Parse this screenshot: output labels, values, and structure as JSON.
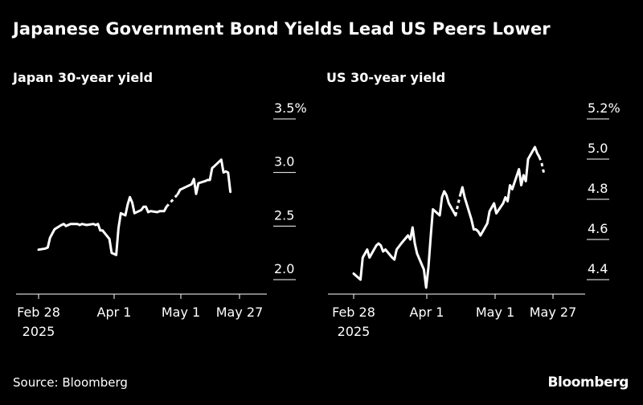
{
  "title": "Japanese Government Bond Yields Lead US Peers Lower",
  "source": "Source: Bloomberg",
  "brand": "Bloomberg",
  "chart_data": [
    {
      "type": "line",
      "title": "Japan 30-year yield",
      "x_ticks": [
        "Feb 28",
        "Apr 1",
        "May 1",
        "May 27"
      ],
      "x_subtick": "2025",
      "y_ticks": [
        "2.0",
        "2.5",
        "3.0",
        "3.5%"
      ],
      "ylim": [
        2.0,
        3.5
      ],
      "grid": false,
      "line_color": "#ffffff",
      "series": [
        {
          "style": "solid",
          "points": [
            [
              "2025-02-28",
              2.28
            ],
            [
              "2025-03-03",
              2.29
            ],
            [
              "2025-03-04",
              2.3
            ],
            [
              "2025-03-05",
              2.39
            ],
            [
              "2025-03-06",
              2.43
            ],
            [
              "2025-03-07",
              2.47
            ],
            [
              "2025-03-10",
              2.51
            ],
            [
              "2025-03-11",
              2.52
            ],
            [
              "2025-03-12",
              2.5
            ],
            [
              "2025-03-13",
              2.51
            ],
            [
              "2025-03-14",
              2.52
            ],
            [
              "2025-03-17",
              2.52
            ],
            [
              "2025-03-18",
              2.51
            ],
            [
              "2025-03-19",
              2.52
            ],
            [
              "2025-03-21",
              2.51
            ],
            [
              "2025-03-24",
              2.52
            ],
            [
              "2025-03-25",
              2.51
            ],
            [
              "2025-03-26",
              2.52
            ],
            [
              "2025-03-27",
              2.46
            ],
            [
              "2025-03-28",
              2.46
            ],
            [
              "2025-03-31",
              2.38
            ],
            [
              "2025-04-01",
              2.25
            ],
            [
              "2025-04-02",
              2.24
            ],
            [
              "2025-04-03",
              2.23
            ],
            [
              "2025-04-04",
              2.48
            ],
            [
              "2025-04-05",
              2.62
            ],
            [
              "2025-04-07",
              2.6
            ],
            [
              "2025-04-08",
              2.7
            ],
            [
              "2025-04-09",
              2.77
            ],
            [
              "2025-04-10",
              2.72
            ],
            [
              "2025-04-11",
              2.62
            ],
            [
              "2025-04-14",
              2.65
            ],
            [
              "2025-04-15",
              2.68
            ],
            [
              "2025-04-16",
              2.68
            ],
            [
              "2025-04-17",
              2.63
            ],
            [
              "2025-04-18",
              2.64
            ],
            [
              "2025-04-21",
              2.63
            ],
            [
              "2025-04-22",
              2.64
            ],
            [
              "2025-04-24",
              2.64
            ],
            [
              "2025-04-25",
              2.68
            ]
          ]
        },
        {
          "style": "dashed",
          "points": [
            [
              "2025-04-25",
              2.68
            ],
            [
              "2025-04-28",
              2.75
            ],
            [
              "2025-04-30",
              2.8
            ]
          ]
        },
        {
          "style": "solid",
          "points": [
            [
              "2025-04-30",
              2.8
            ],
            [
              "2025-05-01",
              2.84
            ],
            [
              "2025-05-02",
              2.85
            ],
            [
              "2025-05-06",
              2.89
            ],
            [
              "2025-05-07",
              2.94
            ],
            [
              "2025-05-08",
              2.8
            ],
            [
              "2025-05-09",
              2.9
            ],
            [
              "2025-05-12",
              2.92
            ],
            [
              "2025-05-13",
              2.93
            ],
            [
              "2025-05-14",
              2.93
            ],
            [
              "2025-05-15",
              3.04
            ],
            [
              "2025-05-16",
              3.06
            ],
            [
              "2025-05-19",
              3.12
            ],
            [
              "2025-05-20",
              3.0
            ],
            [
              "2025-05-21",
              3.01
            ],
            [
              "2025-05-22",
              3.0
            ],
            [
              "2025-05-23",
              2.82
            ]
          ]
        }
      ]
    },
    {
      "type": "line",
      "title": "US 30-year yield",
      "x_ticks": [
        "Feb 28",
        "Apr 1",
        "May 1",
        "May 27"
      ],
      "x_subtick": "2025",
      "y_ticks": [
        "4.4",
        "4.6",
        "4.8",
        "5.0",
        "5.2%"
      ],
      "ylim": [
        4.4,
        5.2
      ],
      "grid": false,
      "line_color": "#ffffff",
      "series": [
        {
          "style": "solid",
          "points": [
            [
              "2025-02-28",
              4.43
            ],
            [
              "2025-03-03",
              4.4
            ],
            [
              "2025-03-04",
              4.51
            ],
            [
              "2025-03-05",
              4.53
            ],
            [
              "2025-03-06",
              4.55
            ],
            [
              "2025-03-07",
              4.51
            ],
            [
              "2025-03-10",
              4.57
            ],
            [
              "2025-03-11",
              4.58
            ],
            [
              "2025-03-12",
              4.57
            ],
            [
              "2025-03-13",
              4.54
            ],
            [
              "2025-03-14",
              4.55
            ],
            [
              "2025-03-17",
              4.51
            ],
            [
              "2025-03-18",
              4.5
            ],
            [
              "2025-03-19",
              4.55
            ],
            [
              "2025-03-21",
              4.58
            ],
            [
              "2025-03-24",
              4.62
            ],
            [
              "2025-03-25",
              4.6
            ],
            [
              "2025-03-26",
              4.66
            ],
            [
              "2025-03-27",
              4.58
            ],
            [
              "2025-03-28",
              4.53
            ],
            [
              "2025-03-31",
              4.45
            ],
            [
              "2025-04-01",
              4.36
            ],
            [
              "2025-04-02",
              4.46
            ],
            [
              "2025-04-03",
              4.61
            ],
            [
              "2025-04-04",
              4.75
            ],
            [
              "2025-04-07",
              4.72
            ],
            [
              "2025-04-08",
              4.81
            ],
            [
              "2025-04-09",
              4.84
            ],
            [
              "2025-04-10",
              4.82
            ],
            [
              "2025-04-11",
              4.78
            ],
            [
              "2025-04-14",
              4.72
            ]
          ]
        },
        {
          "style": "dashed",
          "points": [
            [
              "2025-04-14",
              4.72
            ],
            [
              "2025-04-15",
              4.77
            ],
            [
              "2025-04-16",
              4.82
            ]
          ]
        },
        {
          "style": "solid",
          "points": [
            [
              "2025-04-16",
              4.82
            ],
            [
              "2025-04-17",
              4.86
            ],
            [
              "2025-04-18",
              4.81
            ],
            [
              "2025-04-21",
              4.7
            ],
            [
              "2025-04-22",
              4.65
            ],
            [
              "2025-04-23",
              4.65
            ],
            [
              "2025-04-24",
              4.64
            ],
            [
              "2025-04-25",
              4.62
            ],
            [
              "2025-04-28",
              4.68
            ],
            [
              "2025-04-29",
              4.74
            ],
            [
              "2025-04-30",
              4.76
            ],
            [
              "2025-05-01",
              4.78
            ],
            [
              "2025-05-02",
              4.73
            ],
            [
              "2025-05-05",
              4.78
            ],
            [
              "2025-05-06",
              4.81
            ],
            [
              "2025-05-07",
              4.79
            ],
            [
              "2025-05-08",
              4.87
            ],
            [
              "2025-05-09",
              4.85
            ],
            [
              "2025-05-12",
              4.95
            ],
            [
              "2025-05-13",
              4.87
            ],
            [
              "2025-05-14",
              4.92
            ],
            [
              "2025-05-15",
              4.89
            ],
            [
              "2025-05-16",
              5.0
            ],
            [
              "2025-05-19",
              5.06
            ],
            [
              "2025-05-20",
              5.03
            ],
            [
              "2025-05-21",
              5.01
            ]
          ]
        },
        {
          "style": "dashed",
          "points": [
            [
              "2025-05-21",
              5.01
            ],
            [
              "2025-05-22",
              4.98
            ],
            [
              "2025-05-23",
              4.93
            ]
          ]
        }
      ]
    }
  ]
}
